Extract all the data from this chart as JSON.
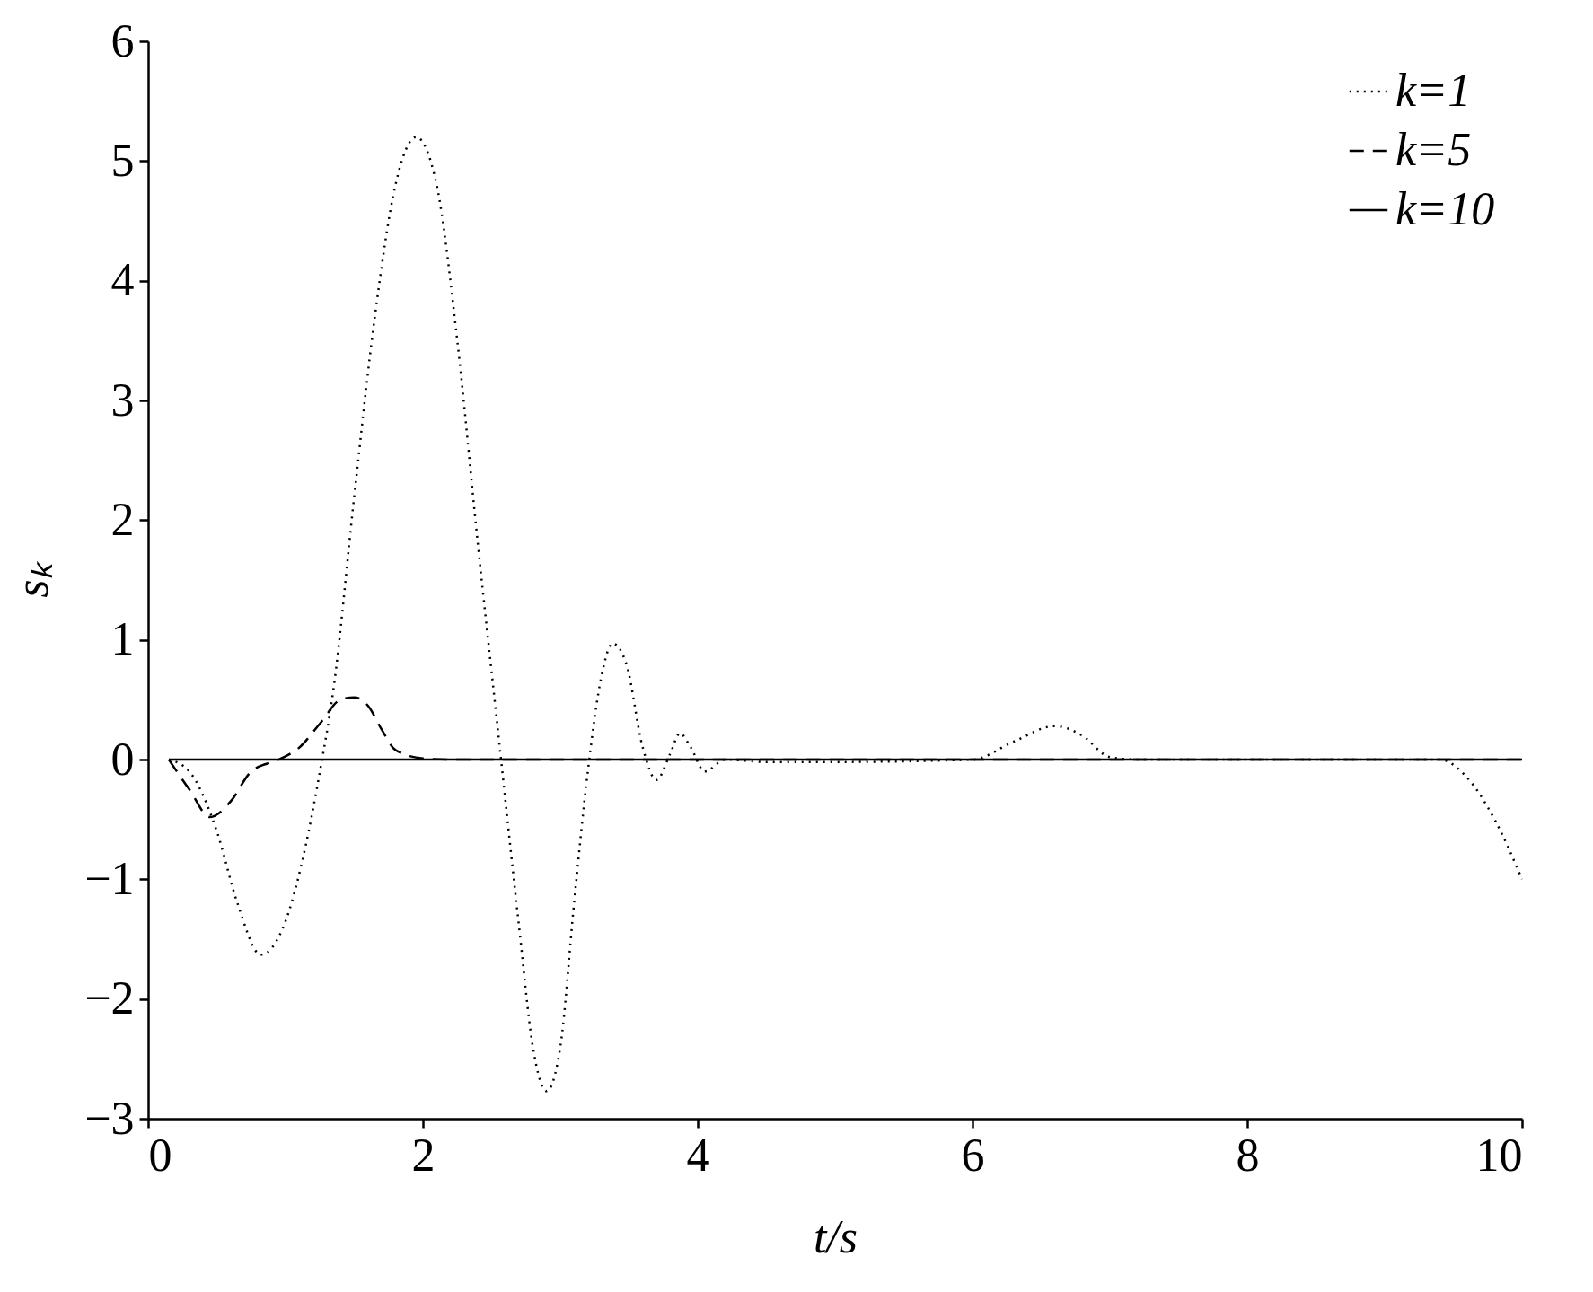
{
  "chart_data": {
    "type": "line",
    "xlabel": "t/s",
    "ylabel": "sₖ",
    "xlim": [
      0,
      10
    ],
    "ylim": [
      -3,
      6
    ],
    "xticks": [
      0,
      2,
      4,
      6,
      8,
      10
    ],
    "yticks": [
      -3,
      -2,
      -1,
      0,
      1,
      2,
      3,
      4,
      5,
      6
    ],
    "grid": false,
    "legend": "top right",
    "marker": "none",
    "series": [
      {
        "name": "k=1",
        "color": "#000000",
        "line_style": "dotted",
        "x": [
          0.15,
          0.3,
          0.5,
          0.65,
          0.82,
          1.0,
          1.15,
          1.25,
          1.35,
          1.5,
          1.65,
          1.8,
          1.95,
          2.1,
          2.25,
          2.4,
          2.55,
          2.7,
          2.8,
          2.9,
          3.0,
          3.1,
          3.2,
          3.3,
          3.38,
          3.48,
          3.6,
          3.7,
          3.8,
          3.87,
          3.95,
          4.05,
          4.2,
          4.5,
          5.0,
          6.0,
          6.3,
          6.6,
          6.8,
          7.0,
          7.2,
          9.4,
          9.6,
          9.8,
          10.0
        ],
        "values": [
          0,
          -0.1,
          -0.6,
          -1.2,
          -1.63,
          -1.35,
          -0.7,
          -0.1,
          0.6,
          2.2,
          3.7,
          4.8,
          5.2,
          4.8,
          3.5,
          1.8,
          0.2,
          -1.4,
          -2.4,
          -2.77,
          -2.4,
          -1.2,
          -0.1,
          0.7,
          0.97,
          0.8,
          0.1,
          -0.17,
          0.05,
          0.22,
          0.1,
          -0.1,
          0,
          -0.02,
          -0.02,
          0,
          0.15,
          0.28,
          0.2,
          0.02,
          0,
          0,
          -0.15,
          -0.5,
          -1.0
        ]
      },
      {
        "name": "k=5",
        "color": "#000000",
        "line_style": "dashed",
        "x": [
          0.15,
          0.3,
          0.45,
          0.6,
          0.75,
          0.95,
          1.1,
          1.25,
          1.4,
          1.5,
          1.6,
          1.7,
          1.8,
          2.0,
          2.2,
          10.0
        ],
        "values": [
          0,
          -0.25,
          -0.48,
          -0.35,
          -0.1,
          0,
          0.1,
          0.3,
          0.5,
          0.52,
          0.45,
          0.25,
          0.08,
          0.01,
          0,
          0
        ]
      },
      {
        "name": "k=10",
        "color": "#000000",
        "line_style": "solid",
        "x": [
          0.15,
          10.0
        ],
        "values": [
          0,
          0
        ]
      }
    ]
  }
}
